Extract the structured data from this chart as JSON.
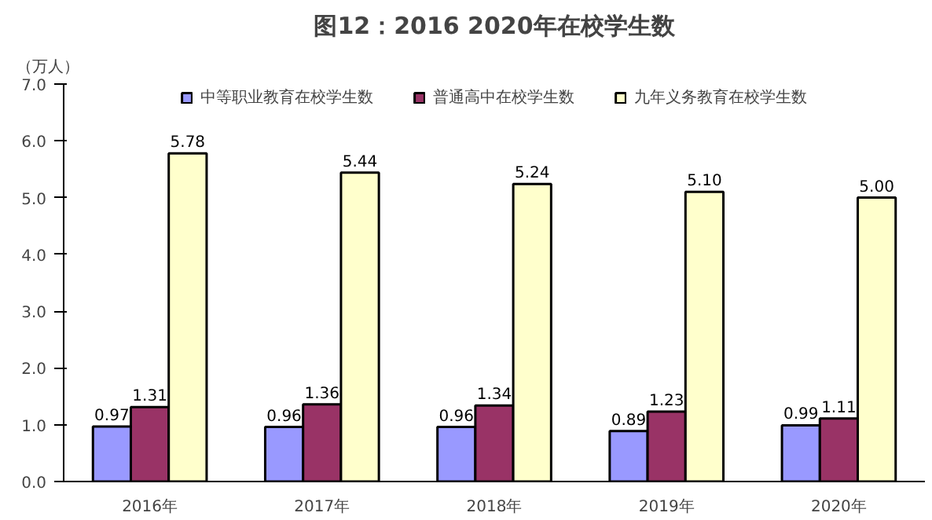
{
  "chart_data": {
    "type": "bar",
    "title": "图12：2016 2020年在校学生数",
    "ylabel": "（万人）",
    "categories": [
      "2016年",
      "2017年",
      "2018年",
      "2019年",
      "2020年"
    ],
    "series": [
      {
        "name": "中等职业教育在校学生数",
        "color": "#9999ff",
        "values": [
          0.97,
          0.96,
          0.96,
          0.89,
          0.99
        ],
        "value_labels": [
          "0.97",
          "0.96",
          "0.96",
          "0.89",
          "0.99"
        ]
      },
      {
        "name": "普通高中在校学生数",
        "color": "#993366",
        "values": [
          1.31,
          1.36,
          1.34,
          1.23,
          1.11
        ],
        "value_labels": [
          "1.31",
          "1.36",
          "1.34",
          "1.23",
          "1.11"
        ]
      },
      {
        "name": "九年义务教育在校学生数",
        "color": "#ffffcc",
        "values": [
          5.78,
          5.44,
          5.24,
          5.1,
          5.0
        ],
        "value_labels": [
          "5.78",
          "5.44",
          "5.24",
          "5.10",
          "5.00"
        ]
      }
    ],
    "ylim": [
      0,
      7
    ],
    "yticks": [
      {
        "value": 0,
        "label": "0.0"
      },
      {
        "value": 1,
        "label": "1.0"
      },
      {
        "value": 2,
        "label": "2.0"
      },
      {
        "value": 3,
        "label": "3.0"
      },
      {
        "value": 4,
        "label": "4.0"
      },
      {
        "value": 5,
        "label": "5.0"
      },
      {
        "value": 6,
        "label": "6.0"
      },
      {
        "value": 7,
        "label": "7.0"
      }
    ],
    "grid": false,
    "legend": "top"
  }
}
